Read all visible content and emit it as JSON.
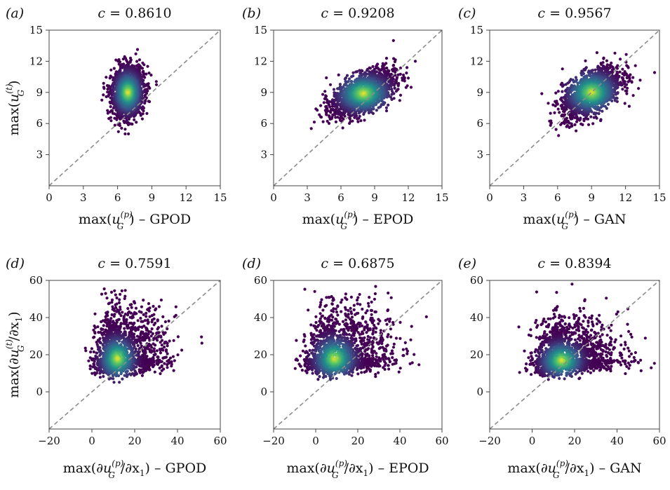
{
  "colors": {
    "colormap": [
      "#440154",
      "#3b528b",
      "#21918c",
      "#5ec962",
      "#fde725"
    ],
    "diagonal": "#8c8c8c",
    "axis": "#444444"
  },
  "chart_data": [
    {
      "type": "scatter",
      "panel_label": "(a)",
      "title": "c = 0.8610",
      "title_var": "c",
      "title_value": "= 0.8610",
      "correlation": 0.861,
      "xlabel": {
        "func": "max(",
        "var": "u",
        "sub": "G",
        "sup": "(p)",
        "close": ")",
        "suffix": " – GPOD"
      },
      "ylabel": {
        "func": "max(",
        "var": "u",
        "sub": "G",
        "sup": "(t)",
        "close": ")"
      },
      "xlim": [
        0,
        15
      ],
      "ylim": [
        0,
        15
      ],
      "xticks": [
        "0",
        "3",
        "6",
        "9",
        "12",
        "15"
      ],
      "yticks": [
        "3",
        "6",
        "9",
        "12",
        "15"
      ],
      "density_center": [
        6.9,
        9.0
      ],
      "spread": [
        0.7,
        1.2
      ],
      "diagonal_line": "y = x"
    },
    {
      "type": "scatter",
      "panel_label": "(b)",
      "title": "c = 0.9208",
      "title_var": "c",
      "title_value": "= 0.9208",
      "correlation": 0.9208,
      "xlabel": {
        "func": "max(",
        "var": "u",
        "sub": "G",
        "sup": "(p)",
        "close": ")",
        "suffix": " – EPOD"
      },
      "ylabel": null,
      "xlim": [
        0,
        15
      ],
      "ylim": [
        0,
        15
      ],
      "xticks": [
        "0",
        "3",
        "6",
        "9",
        "12",
        "15"
      ],
      "yticks": [
        "3",
        "6",
        "9",
        "12",
        "15"
      ],
      "density_center": [
        8.0,
        8.9
      ],
      "spread": [
        1.4,
        1.1
      ],
      "diagonal_line": "y = x"
    },
    {
      "type": "scatter",
      "panel_label": "(c)",
      "title": "c = 0.9567",
      "title_var": "c",
      "title_value": "= 0.9567",
      "correlation": 0.9567,
      "xlabel": {
        "func": "max(",
        "var": "u",
        "sub": "G",
        "sup": "(p)",
        "close": ")",
        "suffix": " – GAN"
      },
      "ylabel": null,
      "xlim": [
        0,
        15
      ],
      "ylim": [
        0,
        15
      ],
      "xticks": [
        "0",
        "3",
        "6",
        "9",
        "12",
        "15"
      ],
      "yticks": [
        "3",
        "6",
        "9",
        "12",
        "15"
      ],
      "density_center": [
        9.0,
        9.0
      ],
      "spread": [
        1.3,
        1.2
      ],
      "diagonal_line": "y = x"
    },
    {
      "type": "scatter",
      "panel_label": "(d)",
      "title": "c = 0.7591",
      "title_var": "c",
      "title_value": "= 0.7591",
      "correlation": 0.7591,
      "xlabel": {
        "func": "max(∂",
        "var": "u",
        "sub": "G",
        "sup": "(p)",
        "close": "/∂x",
        "close_sub": "1",
        "close_end": ")",
        "suffix": " – GPOD"
      },
      "ylabel": {
        "func": "max(∂",
        "var": "u",
        "sub": "G",
        "sup": "(t)",
        "close": "/∂x",
        "close_sub": "1",
        "close_end": ")"
      },
      "xlim": [
        -20,
        60
      ],
      "ylim": [
        -20,
        60
      ],
      "xticks": [
        "−20",
        "0",
        "20",
        "40",
        "60"
      ],
      "yticks": [
        "0",
        "20",
        "40",
        "60"
      ],
      "density_center": [
        12,
        18
      ],
      "spread": [
        5,
        7
      ],
      "diagonal_line": "y = x"
    },
    {
      "type": "scatter",
      "panel_label": "(d)",
      "title": "c = 0.6875",
      "title_var": "c",
      "title_value": "= 0.6875",
      "correlation": 0.6875,
      "xlabel": {
        "func": "max(∂",
        "var": "u",
        "sub": "G",
        "sup": "(p)",
        "close": "/∂x",
        "close_sub": "1",
        "close_end": ")",
        "suffix": " – EPOD"
      },
      "ylabel": null,
      "xlim": [
        -20,
        60
      ],
      "ylim": [
        -20,
        60
      ],
      "xticks": [
        "−20",
        "0",
        "20",
        "40",
        "60"
      ],
      "yticks": [
        "0",
        "20",
        "40",
        "60"
      ],
      "density_center": [
        9,
        18
      ],
      "spread": [
        6,
        7
      ],
      "diagonal_line": "y = x"
    },
    {
      "type": "scatter",
      "panel_label": "(e)",
      "title": "c = 0.8394",
      "title_var": "c",
      "title_value": "= 0.8394",
      "correlation": 0.8394,
      "xlabel": {
        "func": "max(∂",
        "var": "u",
        "sub": "G",
        "sup": "(p)",
        "close": "/∂x",
        "close_sub": "1",
        "close_end": ")",
        "suffix": " – GAN"
      },
      "ylabel": null,
      "xlim": [
        -20,
        60
      ],
      "ylim": [
        -20,
        60
      ],
      "xticks": [
        "−20",
        "0",
        "20",
        "40",
        "60"
      ],
      "yticks": [
        "0",
        "20",
        "40",
        "60"
      ],
      "density_center": [
        14,
        17
      ],
      "spread": [
        6,
        6
      ],
      "diagonal_line": "y = x"
    }
  ]
}
